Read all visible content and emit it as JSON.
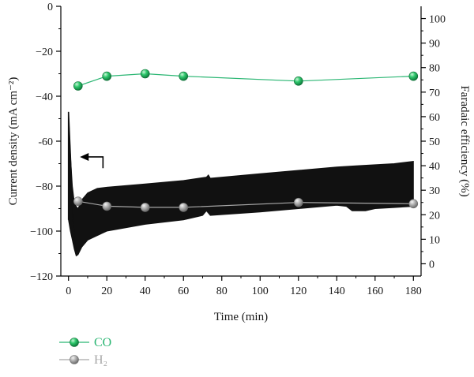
{
  "chart_data": {
    "type": "line",
    "xlabel": "Time (min)",
    "ylabel_left": "Current density (mA cm⁻²)",
    "ylabel_right": "Faradaic efficiency (%)",
    "xlim": [
      -4,
      184
    ],
    "ylim_left": [
      -120,
      0
    ],
    "ylim_right": [
      -5,
      105
    ],
    "xticks": [
      0,
      20,
      40,
      60,
      80,
      100,
      120,
      140,
      160,
      180
    ],
    "yticks_left": [
      0,
      -20,
      -40,
      -60,
      -80,
      -100,
      -120
    ],
    "yticks_right": [
      0,
      10,
      20,
      30,
      40,
      50,
      60,
      70,
      80,
      90,
      100
    ],
    "yticks_left_labels": [
      "0",
      "−20",
      "−40",
      "-60",
      "−80",
      "−100",
      "−120"
    ],
    "grid": false,
    "legend_placement": "bottom-left",
    "current_density_band": {
      "axis": "left",
      "color": "#111111",
      "upper": [
        [
          0,
          -47
        ],
        [
          1,
          -66
        ],
        [
          2,
          -80
        ],
        [
          3,
          -87
        ],
        [
          4,
          -89
        ],
        [
          5,
          -90
        ],
        [
          7,
          -86
        ],
        [
          10,
          -83
        ],
        [
          15,
          -81
        ],
        [
          20,
          -80.5
        ],
        [
          40,
          -79
        ],
        [
          60,
          -77.5
        ],
        [
          72,
          -76
        ],
        [
          73,
          -75
        ],
        [
          74,
          -76.5
        ],
        [
          100,
          -74.5
        ],
        [
          120,
          -73
        ],
        [
          140,
          -71.5
        ],
        [
          150,
          -71
        ],
        [
          170,
          -70
        ],
        [
          180,
          -69
        ]
      ],
      "lower": [
        [
          0,
          -95
        ],
        [
          1,
          -100
        ],
        [
          2,
          -104
        ],
        [
          3,
          -108
        ],
        [
          4,
          -111
        ],
        [
          5,
          -110.5
        ],
        [
          7,
          -107
        ],
        [
          10,
          -104
        ],
        [
          15,
          -102
        ],
        [
          20,
          -100
        ],
        [
          40,
          -97
        ],
        [
          60,
          -95
        ],
        [
          70,
          -93
        ],
        [
          72,
          -91
        ],
        [
          74,
          -93
        ],
        [
          100,
          -91.5
        ],
        [
          120,
          -90
        ],
        [
          140,
          -88.5
        ],
        [
          145,
          -89
        ],
        [
          148,
          -91
        ],
        [
          155,
          -91
        ],
        [
          160,
          -90
        ],
        [
          170,
          -89.5
        ],
        [
          180,
          -89
        ]
      ]
    },
    "arrow": {
      "direction": "left",
      "axis": "left",
      "x_from": 18,
      "x_to": 6,
      "y": -67,
      "tail_drop_to": -72
    },
    "series": [
      {
        "name": "CO",
        "axis": "right",
        "color": "#2bb673",
        "marker_color": "#19b25a",
        "x": [
          5,
          20,
          40,
          60,
          120,
          180
        ],
        "y": [
          72.5,
          76.5,
          77.5,
          76.5,
          74.5,
          76.5
        ]
      },
      {
        "name": "H₂",
        "axis": "right",
        "color": "#a6a6a6",
        "marker_color": "#a0a0a0",
        "x": [
          5,
          20,
          40,
          60,
          120,
          180
        ],
        "y": [
          25.5,
          23.5,
          23,
          23,
          25,
          24.5
        ]
      }
    ]
  }
}
